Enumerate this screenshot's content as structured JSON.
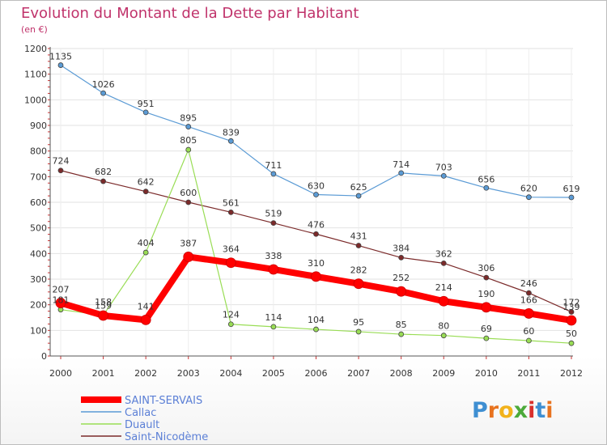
{
  "chart_data": {
    "type": "line",
    "title": "Evolution du Montant de la Dette par Habitant",
    "subtitle": "(en €)",
    "xlabel": "",
    "ylabel": "",
    "ylim": [
      0,
      1200
    ],
    "yticks": [
      0,
      100,
      200,
      300,
      400,
      500,
      600,
      700,
      800,
      900,
      1000,
      1100,
      1200
    ],
    "categories": [
      "2000",
      "2001",
      "2002",
      "2003",
      "2004",
      "2005",
      "2006",
      "2007",
      "2008",
      "2009",
      "2010",
      "2011",
      "2012"
    ],
    "grid": true,
    "legend_position": "bottom-left",
    "series": [
      {
        "name": "Callac",
        "color": "#5b9bd5",
        "values": [
          1135,
          1026,
          951,
          895,
          839,
          711,
          630,
          625,
          714,
          703,
          656,
          620,
          619
        ]
      },
      {
        "name": "Saint-Nicodème",
        "color": "#7b2a2a",
        "values": [
          724,
          682,
          642,
          600,
          561,
          519,
          476,
          431,
          384,
          362,
          306,
          246,
          172
        ]
      },
      {
        "name": "Duault",
        "color": "#99dd55",
        "values": [
          181,
          159,
          404,
          805,
          124,
          114,
          104,
          95,
          85,
          80,
          69,
          60,
          50
        ]
      },
      {
        "name": "SAINT-SERVAIS",
        "color": "#ff0000",
        "values": [
          207,
          158,
          141,
          387,
          364,
          338,
          310,
          282,
          252,
          214,
          190,
          166,
          139
        ]
      }
    ],
    "legend_order": [
      "SAINT-SERVAIS",
      "Callac",
      "Duault",
      "Saint-Nicodème"
    ]
  },
  "brand": {
    "logo_text": "Proxiti"
  }
}
